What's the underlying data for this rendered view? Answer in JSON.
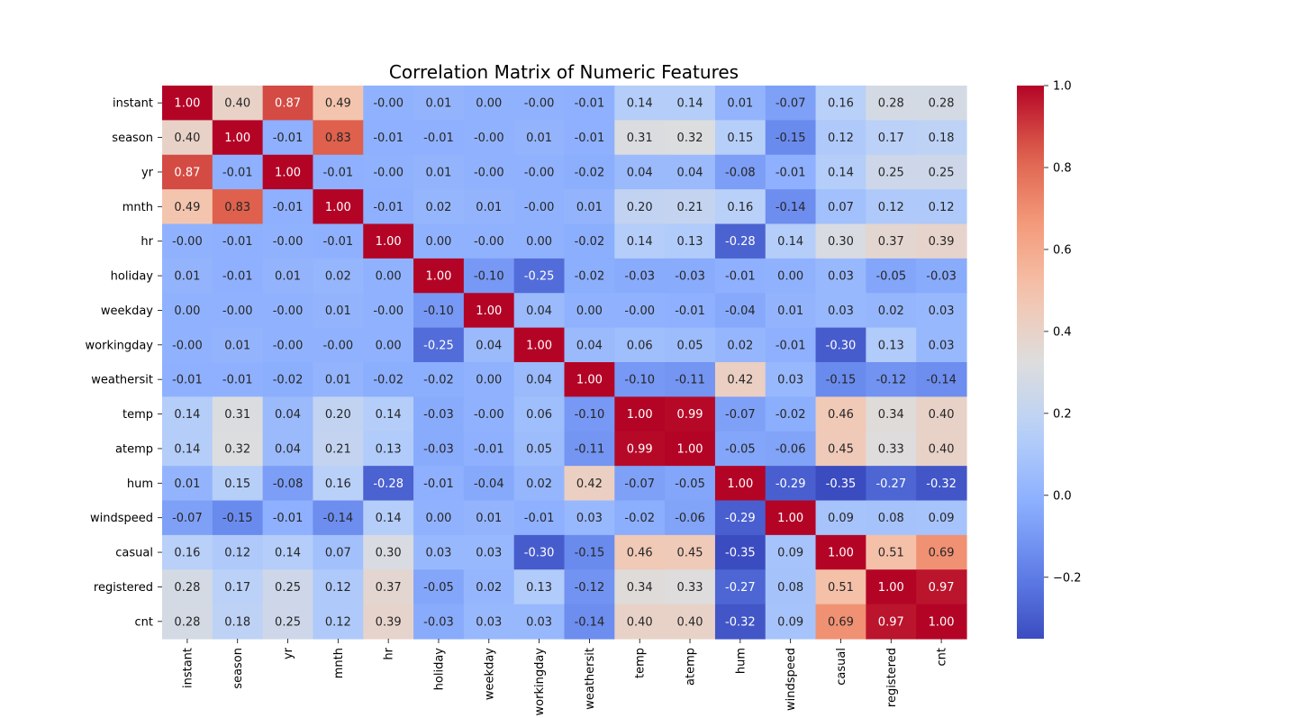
{
  "chart_data": {
    "type": "heatmap",
    "title": "Correlation Matrix of Numeric Features",
    "xlabel": "",
    "ylabel": "",
    "colormap": "coolwarm",
    "vmin": -0.35,
    "vmax": 1.0,
    "colorbar_ticks": [
      "1.0",
      "0.8",
      "0.6",
      "0.4",
      "0.2",
      "0.0",
      "−0.2"
    ],
    "colorbar_tick_values": [
      1.0,
      0.8,
      0.6,
      0.4,
      0.2,
      0.0,
      -0.2
    ],
    "labels": [
      "instant",
      "season",
      "yr",
      "mnth",
      "hr",
      "holiday",
      "weekday",
      "workingday",
      "weathersit",
      "temp",
      "atemp",
      "hum",
      "windspeed",
      "casual",
      "registered",
      "cnt"
    ],
    "values": [
      [
        1.0,
        0.4,
        0.87,
        0.49,
        -0.0,
        0.01,
        0.0,
        -0.0,
        -0.01,
        0.14,
        0.14,
        0.01,
        -0.07,
        0.16,
        0.28,
        0.28
      ],
      [
        0.4,
        1.0,
        -0.01,
        0.83,
        -0.01,
        -0.01,
        -0.0,
        0.01,
        -0.01,
        0.31,
        0.32,
        0.15,
        -0.15,
        0.12,
        0.17,
        0.18
      ],
      [
        0.87,
        -0.01,
        1.0,
        -0.01,
        -0.0,
        0.01,
        -0.0,
        -0.0,
        -0.02,
        0.04,
        0.04,
        -0.08,
        -0.01,
        0.14,
        0.25,
        0.25
      ],
      [
        0.49,
        0.83,
        -0.01,
        1.0,
        -0.01,
        0.02,
        0.01,
        -0.0,
        0.01,
        0.2,
        0.21,
        0.16,
        -0.14,
        0.07,
        0.12,
        0.12
      ],
      [
        -0.0,
        -0.01,
        -0.0,
        -0.01,
        1.0,
        0.0,
        -0.0,
        0.0,
        -0.02,
        0.14,
        0.13,
        -0.28,
        0.14,
        0.3,
        0.37,
        0.39
      ],
      [
        0.01,
        -0.01,
        0.01,
        0.02,
        0.0,
        1.0,
        -0.1,
        -0.25,
        -0.02,
        -0.03,
        -0.03,
        -0.01,
        0.0,
        0.03,
        -0.05,
        -0.03
      ],
      [
        0.0,
        -0.0,
        -0.0,
        0.01,
        -0.0,
        -0.1,
        1.0,
        0.04,
        0.0,
        -0.0,
        -0.01,
        -0.04,
        0.01,
        0.03,
        0.02,
        0.03
      ],
      [
        -0.0,
        0.01,
        -0.0,
        -0.0,
        0.0,
        -0.25,
        0.04,
        1.0,
        0.04,
        0.06,
        0.05,
        0.02,
        -0.01,
        -0.3,
        0.13,
        0.03
      ],
      [
        -0.01,
        -0.01,
        -0.02,
        0.01,
        -0.02,
        -0.02,
        0.0,
        0.04,
        1.0,
        -0.1,
        -0.11,
        0.42,
        0.03,
        -0.15,
        -0.12,
        -0.14
      ],
      [
        0.14,
        0.31,
        0.04,
        0.2,
        0.14,
        -0.03,
        -0.0,
        0.06,
        -0.1,
        1.0,
        0.99,
        -0.07,
        -0.02,
        0.46,
        0.34,
        0.4
      ],
      [
        0.14,
        0.32,
        0.04,
        0.21,
        0.13,
        -0.03,
        -0.01,
        0.05,
        -0.11,
        0.99,
        1.0,
        -0.05,
        -0.06,
        0.45,
        0.33,
        0.4
      ],
      [
        0.01,
        0.15,
        -0.08,
        0.16,
        -0.28,
        -0.01,
        -0.04,
        0.02,
        0.42,
        -0.07,
        -0.05,
        1.0,
        -0.29,
        -0.35,
        -0.27,
        -0.32
      ],
      [
        -0.07,
        -0.15,
        -0.01,
        -0.14,
        0.14,
        0.0,
        0.01,
        -0.01,
        0.03,
        -0.02,
        -0.06,
        -0.29,
        1.0,
        0.09,
        0.08,
        0.09
      ],
      [
        0.16,
        0.12,
        0.14,
        0.07,
        0.3,
        0.03,
        0.03,
        -0.3,
        -0.15,
        0.46,
        0.45,
        -0.35,
        0.09,
        1.0,
        0.51,
        0.69
      ],
      [
        0.28,
        0.17,
        0.25,
        0.12,
        0.37,
        -0.05,
        0.02,
        0.13,
        -0.12,
        0.34,
        0.33,
        -0.27,
        0.08,
        0.51,
        1.0,
        0.97
      ],
      [
        0.28,
        0.18,
        0.25,
        0.12,
        0.39,
        -0.03,
        0.03,
        0.03,
        -0.14,
        0.4,
        0.4,
        -0.32,
        0.09,
        0.69,
        0.97,
        1.0
      ]
    ],
    "value_labels": [
      [
        "1.00",
        "0.40",
        "0.87",
        "0.49",
        "-0.00",
        "0.01",
        "0.00",
        "-0.00",
        "-0.01",
        "0.14",
        "0.14",
        "0.01",
        "-0.07",
        "0.16",
        "0.28",
        "0.28"
      ],
      [
        "0.40",
        "1.00",
        "-0.01",
        "0.83",
        "-0.01",
        "-0.01",
        "-0.00",
        "0.01",
        "-0.01",
        "0.31",
        "0.32",
        "0.15",
        "-0.15",
        "0.12",
        "0.17",
        "0.18"
      ],
      [
        "0.87",
        "-0.01",
        "1.00",
        "-0.01",
        "-0.00",
        "0.01",
        "-0.00",
        "-0.00",
        "-0.02",
        "0.04",
        "0.04",
        "-0.08",
        "-0.01",
        "0.14",
        "0.25",
        "0.25"
      ],
      [
        "0.49",
        "0.83",
        "-0.01",
        "1.00",
        "-0.01",
        "0.02",
        "0.01",
        "-0.00",
        "0.01",
        "0.20",
        "0.21",
        "0.16",
        "-0.14",
        "0.07",
        "0.12",
        "0.12"
      ],
      [
        "-0.00",
        "-0.01",
        "-0.00",
        "-0.01",
        "1.00",
        "0.00",
        "-0.00",
        "0.00",
        "-0.02",
        "0.14",
        "0.13",
        "-0.28",
        "0.14",
        "0.30",
        "0.37",
        "0.39"
      ],
      [
        "0.01",
        "-0.01",
        "0.01",
        "0.02",
        "0.00",
        "1.00",
        "-0.10",
        "-0.25",
        "-0.02",
        "-0.03",
        "-0.03",
        "-0.01",
        "0.00",
        "0.03",
        "-0.05",
        "-0.03"
      ],
      [
        "0.00",
        "-0.00",
        "-0.00",
        "0.01",
        "-0.00",
        "-0.10",
        "1.00",
        "0.04",
        "0.00",
        "-0.00",
        "-0.01",
        "-0.04",
        "0.01",
        "0.03",
        "0.02",
        "0.03"
      ],
      [
        "-0.00",
        "0.01",
        "-0.00",
        "-0.00",
        "0.00",
        "-0.25",
        "0.04",
        "1.00",
        "0.04",
        "0.06",
        "0.05",
        "0.02",
        "-0.01",
        "-0.30",
        "0.13",
        "0.03"
      ],
      [
        "-0.01",
        "-0.01",
        "-0.02",
        "0.01",
        "-0.02",
        "-0.02",
        "0.00",
        "0.04",
        "1.00",
        "-0.10",
        "-0.11",
        "0.42",
        "0.03",
        "-0.15",
        "-0.12",
        "-0.14"
      ],
      [
        "0.14",
        "0.31",
        "0.04",
        "0.20",
        "0.14",
        "-0.03",
        "-0.00",
        "0.06",
        "-0.10",
        "1.00",
        "0.99",
        "-0.07",
        "-0.02",
        "0.46",
        "0.34",
        "0.40"
      ],
      [
        "0.14",
        "0.32",
        "0.04",
        "0.21",
        "0.13",
        "-0.03",
        "-0.01",
        "0.05",
        "-0.11",
        "0.99",
        "1.00",
        "-0.05",
        "-0.06",
        "0.45",
        "0.33",
        "0.40"
      ],
      [
        "0.01",
        "0.15",
        "-0.08",
        "0.16",
        "-0.28",
        "-0.01",
        "-0.04",
        "0.02",
        "0.42",
        "-0.07",
        "-0.05",
        "1.00",
        "-0.29",
        "-0.35",
        "-0.27",
        "-0.32"
      ],
      [
        "-0.07",
        "-0.15",
        "-0.01",
        "-0.14",
        "0.14",
        "0.00",
        "0.01",
        "-0.01",
        "0.03",
        "-0.02",
        "-0.06",
        "-0.29",
        "1.00",
        "0.09",
        "0.08",
        "0.09"
      ],
      [
        "0.16",
        "0.12",
        "0.14",
        "0.07",
        "0.30",
        "0.03",
        "0.03",
        "-0.30",
        "-0.15",
        "0.46",
        "0.45",
        "-0.35",
        "0.09",
        "1.00",
        "0.51",
        "0.69"
      ],
      [
        "0.28",
        "0.17",
        "0.25",
        "0.12",
        "0.37",
        "-0.05",
        "0.02",
        "0.13",
        "-0.12",
        "0.34",
        "0.33",
        "-0.27",
        "0.08",
        "0.51",
        "1.00",
        "0.97"
      ],
      [
        "0.28",
        "0.18",
        "0.25",
        "0.12",
        "0.39",
        "-0.03",
        "0.03",
        "0.03",
        "-0.14",
        "0.40",
        "0.40",
        "-0.32",
        "0.09",
        "0.69",
        "0.97",
        "1.00"
      ]
    ]
  }
}
